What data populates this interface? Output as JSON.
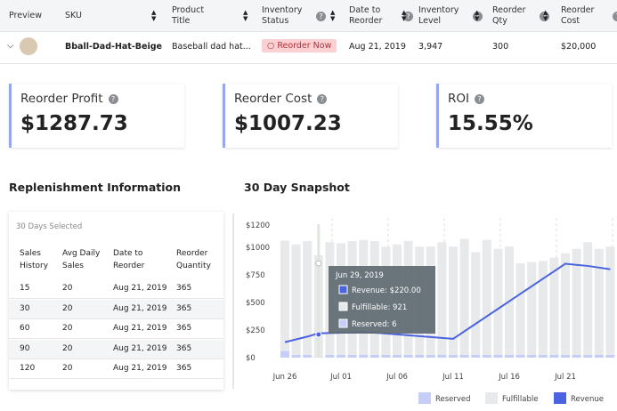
{
  "table": {
    "headers": [
      "Preview",
      "SKU",
      "Product Title",
      "Inventory Status",
      "Date to Reorder",
      "Inventory Level",
      "Reorder Qty",
      "Reorder Cost"
    ],
    "row": [
      "Bball-Dad-Hat-Beige",
      "Baseball dad hat...",
      "Reorder Now",
      "Aug 21, 2019",
      "3,947",
      "300",
      "$20,000"
    ]
  },
  "cards": [
    {
      "label": "Reorder Profit",
      "value": "$1287.73"
    },
    {
      "label": "Reorder Cost",
      "value": "$1007.23"
    },
    {
      "label": "ROI",
      "value": "15.55%"
    }
  ],
  "replenishment": {
    "title": "Replenishment Information",
    "subtitle": "30 Days Selected",
    "headers": [
      "Sales History",
      "Avg Daily Sales",
      "Date to Reorder",
      "Reorder Quantity"
    ],
    "rows": [
      [
        15,
        20,
        "Aug 21, 2019",
        365
      ],
      [
        30,
        20,
        "Aug 21, 2019",
        365
      ],
      [
        60,
        20,
        "Aug 21, 2019",
        365
      ],
      [
        90,
        20,
        "Aug 21, 2019",
        365
      ],
      [
        120,
        20,
        "Aug 21, 2019",
        365
      ]
    ]
  },
  "chart_data": {
    "type": "bar",
    "title": "30 Day Snapshot",
    "categories": [
      "Jun 26",
      null,
      null,
      null,
      null,
      "Jul 01",
      null,
      null,
      null,
      null,
      "Jul 06",
      null,
      null,
      null,
      null,
      "Jul 11",
      null,
      null,
      null,
      null,
      "Jul 16",
      null,
      null,
      null,
      null,
      "Jul 21",
      null,
      null,
      null,
      null
    ],
    "series": [
      {
        "name": "Reserved",
        "color": "#c6cdf6",
        "stack": true,
        "values": [
          60,
          25,
          25,
          6,
          25,
          25,
          25,
          25,
          25,
          25,
          25,
          25,
          25,
          25,
          25,
          25,
          25,
          25,
          25,
          25,
          25,
          25,
          25,
          25,
          25,
          25,
          25,
          25,
          25,
          25
        ]
      },
      {
        "name": "Fulfillable",
        "color": "#e8e9eb",
        "stack": true,
        "values": [
          1000,
          1000,
          1030,
          921,
          1020,
          1010,
          1030,
          1040,
          1030,
          980,
          1000,
          1030,
          980,
          980,
          1020,
          980,
          1050,
          930,
          1040,
          960,
          980,
          830,
          840,
          850,
          880,
          920,
          960,
          1020,
          960,
          980
        ]
      },
      {
        "name": "Revenue",
        "color": "#4a63e0",
        "line": true,
        "values": [
          140,
          165,
          190,
          220,
          222,
          225,
          228,
          230,
          225,
          218,
          210,
          202,
          194,
          186,
          178,
          170,
          238,
          306,
          374,
          442,
          510,
          578,
          646,
          714,
          782,
          850,
          840,
          830,
          815,
          800
        ]
      }
    ],
    "ylim": [
      0,
      1200
    ],
    "yticks": [
      {
        "value": 0,
        "label": "$0"
      },
      {
        "value": 250,
        "label": "$250"
      },
      {
        "value": 500,
        "label": "$500"
      },
      {
        "value": 750,
        "label": "$750"
      },
      {
        "value": 1000,
        "label": "$1000"
      },
      {
        "value": 1200,
        "label": "$1200"
      }
    ],
    "tooltip": {
      "title": "Jun 29, 2019",
      "lines": [
        "Revenue: $220.00",
        "Fulfillable: 921",
        "Reserved: 6"
      ]
    }
  }
}
